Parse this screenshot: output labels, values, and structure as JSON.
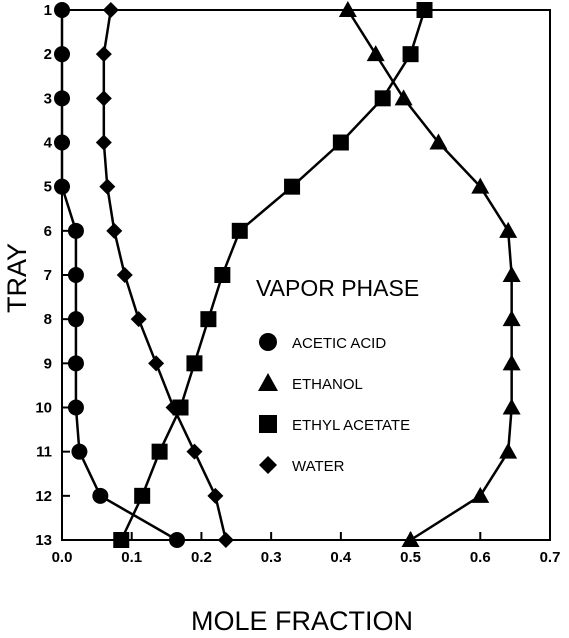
{
  "chart_data": {
    "type": "line",
    "title": "VAPOR PHASE",
    "xlabel": "MOLE FRACTION",
    "ylabel": "TRAY",
    "xlim": [
      0.0,
      0.7
    ],
    "ylim": [
      1,
      13
    ],
    "y_inverted": true,
    "x_ticks": [
      "0.0",
      "0.1",
      "0.2",
      "0.3",
      "0.4",
      "0.5",
      "0.6",
      "0.7"
    ],
    "y_ticks": [
      "1",
      "2",
      "3",
      "4",
      "5",
      "6",
      "7",
      "8",
      "9",
      "10",
      "11",
      "12",
      "13"
    ],
    "grid": false,
    "legend_position": "center-right",
    "series": [
      {
        "name": "ACETIC ACID",
        "marker": "circle",
        "points": [
          [
            0.0,
            1
          ],
          [
            0.0,
            2
          ],
          [
            0.0,
            3
          ],
          [
            0.0,
            4
          ],
          [
            0.0,
            5
          ],
          [
            0.02,
            6
          ],
          [
            0.02,
            7
          ],
          [
            0.02,
            8
          ],
          [
            0.02,
            9
          ],
          [
            0.02,
            10
          ],
          [
            0.025,
            11
          ],
          [
            0.055,
            12
          ],
          [
            0.165,
            13
          ]
        ]
      },
      {
        "name": "ETHANOL",
        "marker": "triangle",
        "points": [
          [
            0.41,
            1
          ],
          [
            0.45,
            2
          ],
          [
            0.49,
            3
          ],
          [
            0.54,
            4
          ],
          [
            0.6,
            5
          ],
          [
            0.64,
            6
          ],
          [
            0.645,
            7
          ],
          [
            0.645,
            8
          ],
          [
            0.645,
            9
          ],
          [
            0.645,
            10
          ],
          [
            0.64,
            11
          ],
          [
            0.6,
            12
          ],
          [
            0.5,
            13
          ]
        ]
      },
      {
        "name": "ETHYL ACETATE",
        "marker": "square",
        "points": [
          [
            0.52,
            1
          ],
          [
            0.5,
            2
          ],
          [
            0.46,
            3
          ],
          [
            0.4,
            4
          ],
          [
            0.33,
            5
          ],
          [
            0.255,
            6
          ],
          [
            0.23,
            7
          ],
          [
            0.21,
            8
          ],
          [
            0.19,
            9
          ],
          [
            0.17,
            10
          ],
          [
            0.14,
            11
          ],
          [
            0.115,
            12
          ],
          [
            0.085,
            13
          ]
        ]
      },
      {
        "name": "WATER",
        "marker": "diamond",
        "points": [
          [
            0.07,
            1
          ],
          [
            0.06,
            2
          ],
          [
            0.06,
            3
          ],
          [
            0.06,
            4
          ],
          [
            0.065,
            5
          ],
          [
            0.075,
            6
          ],
          [
            0.09,
            7
          ],
          [
            0.11,
            8
          ],
          [
            0.135,
            9
          ],
          [
            0.16,
            10
          ],
          [
            0.19,
            11
          ],
          [
            0.22,
            12
          ],
          [
            0.235,
            13
          ]
        ]
      }
    ]
  }
}
